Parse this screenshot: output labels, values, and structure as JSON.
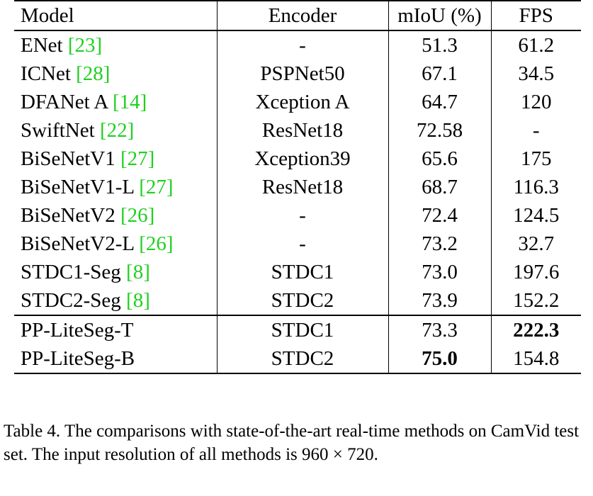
{
  "table": {
    "headers": [
      "Model",
      "Encoder",
      "mIoU (%)",
      "FPS"
    ],
    "rows": [
      {
        "model": "ENet",
        "ref": "[23]",
        "encoder": "-",
        "miou": "51.3",
        "fps": "61.2"
      },
      {
        "model": "ICNet",
        "ref": "[28]",
        "encoder": "PSPNet50",
        "miou": "67.1",
        "fps": "34.5"
      },
      {
        "model": "DFANet A",
        "ref": "[14]",
        "encoder": "Xception A",
        "miou": "64.7",
        "fps": "120"
      },
      {
        "model": "SwiftNet",
        "ref": "[22]",
        "encoder": "ResNet18",
        "miou": "72.58",
        "fps": "-"
      },
      {
        "model": "BiSeNetV1",
        "ref": "[27]",
        "encoder": "Xception39",
        "miou": "65.6",
        "fps": "175"
      },
      {
        "model": "BiSeNetV1-L",
        "ref": "[27]",
        "encoder": "ResNet18",
        "miou": "68.7",
        "fps": "116.3"
      },
      {
        "model": "BiSeNetV2",
        "ref": "[26]",
        "encoder": "-",
        "miou": "72.4",
        "fps": "124.5"
      },
      {
        "model": "BiSeNetV2-L",
        "ref": "[26]",
        "encoder": "-",
        "miou": "73.2",
        "fps": "32.7"
      },
      {
        "model": "STDC1-Seg",
        "ref": "[8]",
        "encoder": "STDC1",
        "miou": "73.0",
        "fps": "197.6"
      },
      {
        "model": "STDC2-Seg",
        "ref": "[8]",
        "encoder": "STDC2",
        "miou": "73.9",
        "fps": "152.2"
      },
      {
        "model": "PP-LiteSeg-T",
        "ref": "",
        "encoder": "STDC1",
        "miou": "73.3",
        "fps": "222.3"
      },
      {
        "model": "PP-LiteSeg-B",
        "ref": "",
        "encoder": "STDC2",
        "miou": "75.0",
        "fps": "154.8"
      }
    ]
  },
  "caption": "Table 4. The comparisons with state-of-the-art real-time methods on CamVid test set. The input resolution of all methods is 960 × 720."
}
